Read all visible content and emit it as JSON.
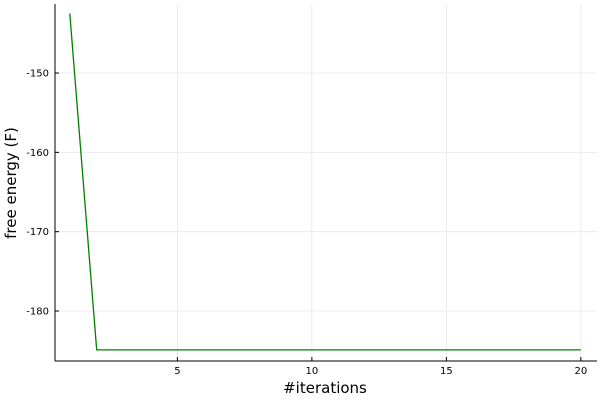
{
  "chart_data": {
    "type": "line",
    "title": "",
    "xlabel": "#iterations",
    "ylabel": "free energy (F)",
    "xlim": [
      0.45,
      20.6
    ],
    "ylim": [
      -186.3,
      -141.3
    ],
    "x_ticks": [
      5,
      10,
      15,
      20
    ],
    "y_ticks": [
      -180,
      -170,
      -160,
      -150
    ],
    "x_tick_labels": [
      "5",
      "10",
      "15",
      "20"
    ],
    "y_tick_labels": [
      "-180",
      "-170",
      "-160",
      "-150"
    ],
    "grid": true,
    "legend": "none",
    "series": [
      {
        "color": "#008000",
        "x": [
          1,
          2,
          3,
          4,
          5,
          6,
          7,
          8,
          9,
          10,
          11,
          12,
          13,
          14,
          15,
          16,
          17,
          18,
          19,
          20
        ],
        "y": [
          -142.5,
          -184.9,
          -184.9,
          -184.9,
          -184.9,
          -184.9,
          -184.9,
          -184.9,
          -184.9,
          -184.9,
          -184.9,
          -184.9,
          -184.9,
          -184.9,
          -184.9,
          -184.9,
          -184.9,
          -184.9,
          -184.9,
          -184.9
        ]
      }
    ]
  }
}
